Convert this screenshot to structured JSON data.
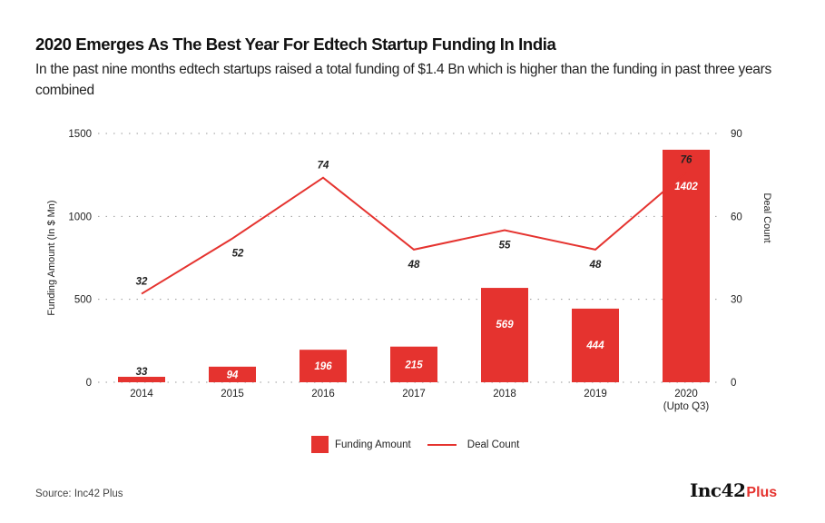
{
  "header": {
    "title": "2020 Emerges As The Best Year For Edtech Startup Funding In India",
    "subtitle": "In the past nine months edtech startups raised a total funding of $1.4 Bn which is higher than the funding in past three years combined"
  },
  "chart_data": {
    "type": "bar",
    "title": "2020 Emerges As The Best Year For Edtech Startup Funding In India",
    "categories": [
      "2014",
      "2015",
      "2016",
      "2017",
      "2018",
      "2019",
      "2020"
    ],
    "category_sublabels": [
      "",
      "",
      "",
      "",
      "",
      "",
      "(Upto Q3)"
    ],
    "series": [
      {
        "name": "Funding Amount",
        "type": "bar",
        "axis": "left",
        "color": "#e5332f",
        "values": [
          33,
          94,
          196,
          215,
          569,
          444,
          1402
        ]
      },
      {
        "name": "Deal Count",
        "type": "line",
        "axis": "right",
        "color": "#e5332f",
        "values": [
          32,
          52,
          74,
          48,
          55,
          48,
          76
        ]
      }
    ],
    "xlabel": "",
    "ylabel": "Funding Amount (In $ Mn)",
    "ylabel_right": "Deal Count",
    "ylim": [
      0,
      1500
    ],
    "ylim_right": [
      0,
      90
    ],
    "yticks": [
      0,
      500,
      1000,
      1500
    ],
    "yticks_right": [
      0,
      30,
      60,
      90
    ],
    "grid": true,
    "legend": "bottom-center"
  },
  "legend": {
    "items": [
      {
        "label": "Funding Amount",
        "kind": "bar"
      },
      {
        "label": "Deal Count",
        "kind": "line"
      }
    ]
  },
  "footer": {
    "source": "Source: Inc42 Plus",
    "logo_main": "Inc42",
    "logo_plus": "Plus"
  }
}
